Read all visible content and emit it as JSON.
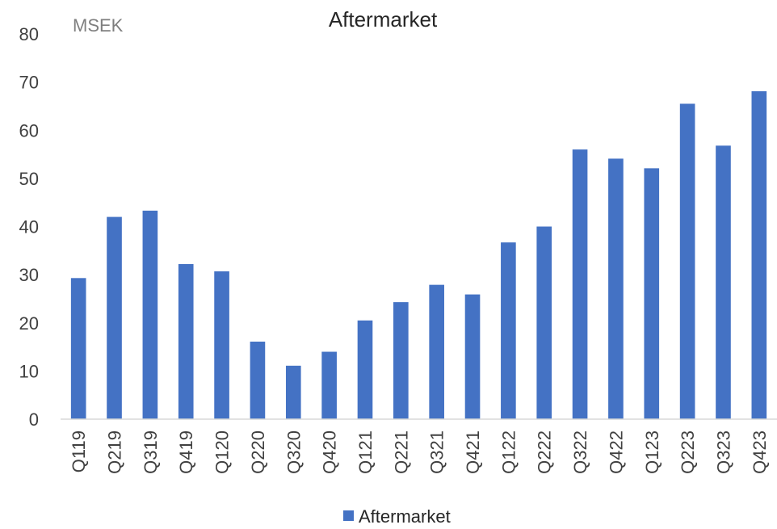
{
  "chart_data": {
    "type": "bar",
    "title": "Aftermarket",
    "unit_label": "MSEK",
    "xlabel": "",
    "ylabel": "",
    "ylim": [
      0,
      80
    ],
    "yticks": [
      "0",
      "10",
      "20",
      "30",
      "40",
      "50",
      "60",
      "70",
      "80"
    ],
    "categories": [
      "Q119",
      "Q219",
      "Q319",
      "Q419",
      "Q120",
      "Q220",
      "Q320",
      "Q420",
      "Q121",
      "Q221",
      "Q321",
      "Q421",
      "Q122",
      "Q222",
      "Q322",
      "Q422",
      "Q123",
      "Q223",
      "Q323",
      "Q423"
    ],
    "series": [
      {
        "name": "Aftermarket",
        "color": "#4472c4",
        "values": [
          29.3,
          42,
          43.3,
          32.2,
          30.7,
          16.1,
          11.1,
          14,
          20.5,
          24.3,
          27.9,
          25.9,
          36.7,
          40,
          56,
          54.1,
          52.1,
          65.5,
          56.8,
          68.1
        ]
      }
    ],
    "grid": false,
    "legend_position": "bottom"
  }
}
